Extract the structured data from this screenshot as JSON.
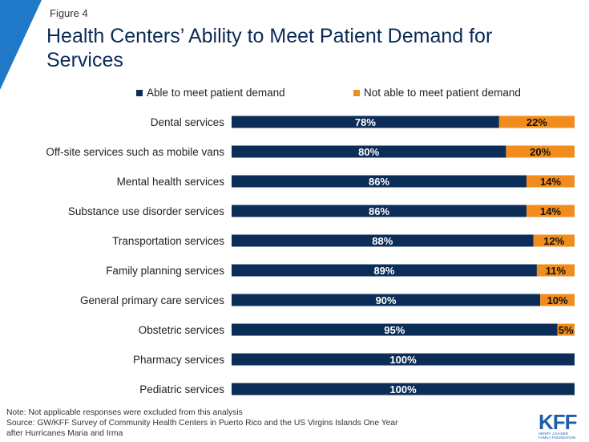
{
  "figure_label": "Figure 4",
  "colors": {
    "able": "#0c2d57",
    "not_able": "#f28c1c",
    "accent": "#1f78c8"
  },
  "chart_data": {
    "type": "bar",
    "orientation": "horizontal",
    "stacked": true,
    "title": "Health Centers’ Ability to Meet Patient Demand for Services",
    "categories": [
      "Dental services",
      "Off-site services such as mobile vans",
      "Mental health services",
      "Substance use disorder services",
      "Transportation services",
      "Family planning services",
      "General primary care services",
      "Obstetric services",
      "Pharmacy services",
      "Pediatric services"
    ],
    "series": [
      {
        "name": "Able to meet patient demand",
        "values": [
          78,
          80,
          86,
          86,
          88,
          89,
          90,
          95,
          100,
          100
        ]
      },
      {
        "name": "Not able to meet patient demand",
        "values": [
          22,
          20,
          14,
          14,
          12,
          11,
          10,
          5,
          0,
          0
        ]
      }
    ],
    "xlim": [
      0,
      100
    ],
    "value_suffix": "%",
    "legend_position": "top",
    "grid": false
  },
  "notes": {
    "line1": "Note: Not applicable responses were  excluded from this analysis",
    "line2": "Source: GW/KFF Survey of Community Health Centers in Puerto Rico and the US Virgins Islands One Year",
    "line3": "after Hurricanes Maria and Irma"
  },
  "logo": {
    "text": "KFF",
    "subtext1": "HENRY J KAISER",
    "subtext2": "FAMILY FOUNDATION"
  }
}
